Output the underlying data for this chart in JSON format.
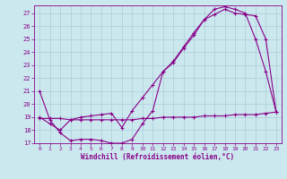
{
  "xlabel": "Windchill (Refroidissement éolien,°C)",
  "bg_color": "#cce8ef",
  "line_color": "#880088",
  "grid_color": "#aaccd8",
  "xlim": [
    -0.5,
    23.5
  ],
  "ylim": [
    17.0,
    27.6
  ],
  "yticks": [
    17,
    18,
    19,
    20,
    21,
    22,
    23,
    24,
    25,
    26,
    27
  ],
  "xticks": [
    0,
    1,
    2,
    3,
    4,
    5,
    6,
    7,
    8,
    9,
    10,
    11,
    12,
    13,
    14,
    15,
    16,
    17,
    18,
    19,
    20,
    21,
    22,
    23
  ],
  "line1_x": [
    0,
    1,
    2,
    3,
    4,
    5,
    6,
    7,
    8,
    9,
    10,
    11,
    12,
    13,
    14,
    15,
    16,
    17,
    18,
    19,
    20,
    21,
    22,
    23
  ],
  "line1_y": [
    21.0,
    18.8,
    17.8,
    17.2,
    17.3,
    17.3,
    17.2,
    17.0,
    17.0,
    17.3,
    18.5,
    19.5,
    22.5,
    23.2,
    24.3,
    25.3,
    26.5,
    27.3,
    27.5,
    27.3,
    27.0,
    25.0,
    22.5,
    19.4
  ],
  "line2_x": [
    0,
    1,
    2,
    3,
    4,
    5,
    6,
    7,
    8,
    9,
    10,
    11,
    12,
    13,
    14,
    15,
    16,
    17,
    18,
    19,
    20,
    21,
    22,
    23
  ],
  "line2_y": [
    18.9,
    18.9,
    18.9,
    18.8,
    18.8,
    18.8,
    18.8,
    18.8,
    18.8,
    18.8,
    18.9,
    18.9,
    19.0,
    19.0,
    19.0,
    19.0,
    19.1,
    19.1,
    19.1,
    19.2,
    19.2,
    19.2,
    19.3,
    19.4
  ],
  "line3_x": [
    0,
    1,
    2,
    3,
    4,
    5,
    6,
    7,
    8,
    9,
    10,
    11,
    12,
    13,
    14,
    15,
    16,
    17,
    18,
    19,
    20,
    21,
    22,
    23
  ],
  "line3_y": [
    19.0,
    18.5,
    18.0,
    18.8,
    19.0,
    19.1,
    19.2,
    19.3,
    18.2,
    19.5,
    20.5,
    21.5,
    22.5,
    23.3,
    24.4,
    25.5,
    26.5,
    26.9,
    27.3,
    27.0,
    26.9,
    26.8,
    25.0,
    19.4
  ]
}
